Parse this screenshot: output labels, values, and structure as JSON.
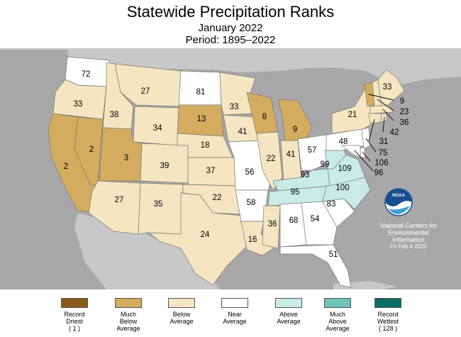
{
  "title": "Statewide Precipitation Ranks",
  "subtitle": "January 2022",
  "period": "Period: 1895–2022",
  "colors": {
    "record_driest": "#8c5a19",
    "much_below": "#d4ac5f",
    "below": "#f5e6c1",
    "near": "#ffffff",
    "above": "#c8ebe6",
    "much_above": "#6ec3b9",
    "record_wettest": "#0a6e64",
    "land_outside": "#c8c8c8",
    "water": "#a8a8a8"
  },
  "ranks": {
    "WA": "72",
    "OR": "33",
    "CA": "2",
    "NV": "2",
    "ID": "38",
    "MT": "27",
    "WY": "34",
    "UT": "3",
    "AZ": "27",
    "CO": "39",
    "NM": "35",
    "ND": "81",
    "SD": "13",
    "NE": "18",
    "KS": "37",
    "OK": "22",
    "TX": "24",
    "MN": "33",
    "IA": "41",
    "MO": "56",
    "AR": "58",
    "LA": "16",
    "WI": "8",
    "IL": "22",
    "MI": "9",
    "IN": "41",
    "OH": "57",
    "KY": "93",
    "TN": "95",
    "MS": "36",
    "AL": "68",
    "GA": "54",
    "FL": "51",
    "SC": "83",
    "NC": "100",
    "VA": "109",
    "WV": "99",
    "PA": "48",
    "NY": "21",
    "ME": "33",
    "VT": "9",
    "NH": "23",
    "MA": "36",
    "RI": "42",
    "CT": "31",
    "NJ": "75",
    "DE": "106",
    "MD": "96"
  },
  "credit": {
    "line1": "National Centers for",
    "line2": "Environmental",
    "line3": "Information",
    "date": "Fri Feb  4 2022"
  },
  "legend": {
    "record_driest": [
      "Record",
      "Driest",
      "( 1 )"
    ],
    "much_below": [
      "Much",
      "Below",
      "Average"
    ],
    "below": [
      "Below",
      "Average"
    ],
    "near": [
      "Near",
      "Average"
    ],
    "above": [
      "Above",
      "Average"
    ],
    "much_above": [
      "Much",
      "Above",
      "Average"
    ],
    "record_wettest": [
      "Record",
      "Wettest",
      "( 128 )"
    ]
  }
}
